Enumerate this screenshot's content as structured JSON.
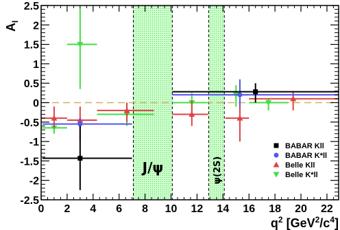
{
  "chart_data": {
    "type": "scatter",
    "title": "",
    "xlabel": "q² [GeV²/c⁴]",
    "xlabel_parts": {
      "base": "q",
      "sup1": "2",
      "mid": " [GeV",
      "sup2": "2",
      "mid2": "/c",
      "sup3": "4",
      "end": "]"
    },
    "ylabel": "A_I",
    "ylabel_parts": {
      "base": "A",
      "sub": "I"
    },
    "xlim": [
      0,
      22.9
    ],
    "ylim": [
      -2.5,
      2.5
    ],
    "xticks": [
      0,
      2,
      4,
      6,
      8,
      10,
      12,
      14,
      16,
      18,
      20,
      22
    ],
    "yticks": [
      -2.5,
      -2,
      -1.5,
      -1,
      -0.5,
      0,
      0.5,
      1,
      1.5,
      2,
      2.5
    ],
    "grid": false,
    "legend_position": "bottom-right",
    "reference_line_y": 0,
    "vetoed_regions": [
      {
        "label": "J/ψ",
        "x": [
          7.1,
          10.1
        ]
      },
      {
        "label": "ψ(2S)",
        "x": [
          12.9,
          14.1
        ]
      }
    ],
    "series": [
      {
        "name": "BABAR Kll",
        "color": "#000000",
        "marker": "square",
        "points": [
          {
            "x": 3.0,
            "y": -1.43,
            "xlo": 0.1,
            "xhi": 7.0,
            "ylo": -2.25,
            "yhi": -0.6
          },
          {
            "x": 16.5,
            "y": 0.28,
            "xlo": 10.1,
            "xhi": 22.9,
            "ylo": 0.0,
            "yhi": 0.5
          }
        ]
      },
      {
        "name": "BABAR K*ll",
        "color": "#5555ee",
        "marker": "circle",
        "points": [
          {
            "x": 3.0,
            "y": -0.55,
            "xlo": 0.1,
            "xhi": 7.0,
            "ylo": -0.65,
            "yhi": -0.4
          },
          {
            "x": 15.3,
            "y": 0.2,
            "xlo": 10.1,
            "xhi": 22.9,
            "ylo": -0.1,
            "yhi": 0.6
          }
        ]
      },
      {
        "name": "Belle Kll",
        "color": "#dd4444",
        "marker": "triangle-up",
        "points": [
          {
            "x": 1.0,
            "y": -0.4,
            "xlo": 0.0,
            "xhi": 2.0,
            "ylo": -0.65,
            "yhi": -0.1
          },
          {
            "x": 3.0,
            "y": -0.45,
            "xlo": 2.0,
            "xhi": 4.3,
            "ylo": -1.0,
            "yhi": -0.1
          },
          {
            "x": 6.6,
            "y": -0.2,
            "xlo": 4.3,
            "xhi": 8.68,
            "ylo": -0.5,
            "yhi": 0.0
          },
          {
            "x": 11.6,
            "y": -0.3,
            "xlo": 10.09,
            "xhi": 12.86,
            "ylo": -0.6,
            "yhi": 0.05
          },
          {
            "x": 15.3,
            "y": -0.4,
            "xlo": 14.18,
            "xhi": 16.0,
            "ylo": -1.0,
            "yhi": 0.15
          },
          {
            "x": 19.4,
            "y": 0.1,
            "xlo": 16.0,
            "xhi": 22.9,
            "ylo": -0.2,
            "yhi": 0.3
          }
        ]
      },
      {
        "name": "Belle K*ll",
        "color": "#44dd44",
        "marker": "triangle-down",
        "points": [
          {
            "x": 1.0,
            "y": -0.65,
            "xlo": 0.0,
            "xhi": 2.0,
            "ylo": -0.8,
            "yhi": -0.5
          },
          {
            "x": 3.0,
            "y": 1.5,
            "xlo": 2.0,
            "xhi": 4.3,
            "ylo": 0.35,
            "yhi": 2.45
          },
          {
            "x": 6.6,
            "y": -0.3,
            "xlo": 4.3,
            "xhi": 8.68,
            "ylo": -0.6,
            "yhi": 0.0
          },
          {
            "x": 11.6,
            "y": 0.0,
            "xlo": 10.09,
            "xhi": 12.86,
            "ylo": -0.25,
            "yhi": 0.25
          },
          {
            "x": 15.0,
            "y": 0.2,
            "xlo": 14.18,
            "xhi": 16.0,
            "ylo": -0.1,
            "yhi": 0.45
          },
          {
            "x": 17.5,
            "y": 0.0,
            "xlo": 16.0,
            "xhi": 19.0,
            "ylo": -0.2,
            "yhi": 0.1
          }
        ]
      }
    ],
    "colors": {
      "axis": "#000000",
      "zero_line": "#d4b060",
      "band_fill": "#ccffcc",
      "band_pattern": "#66cc66"
    }
  }
}
